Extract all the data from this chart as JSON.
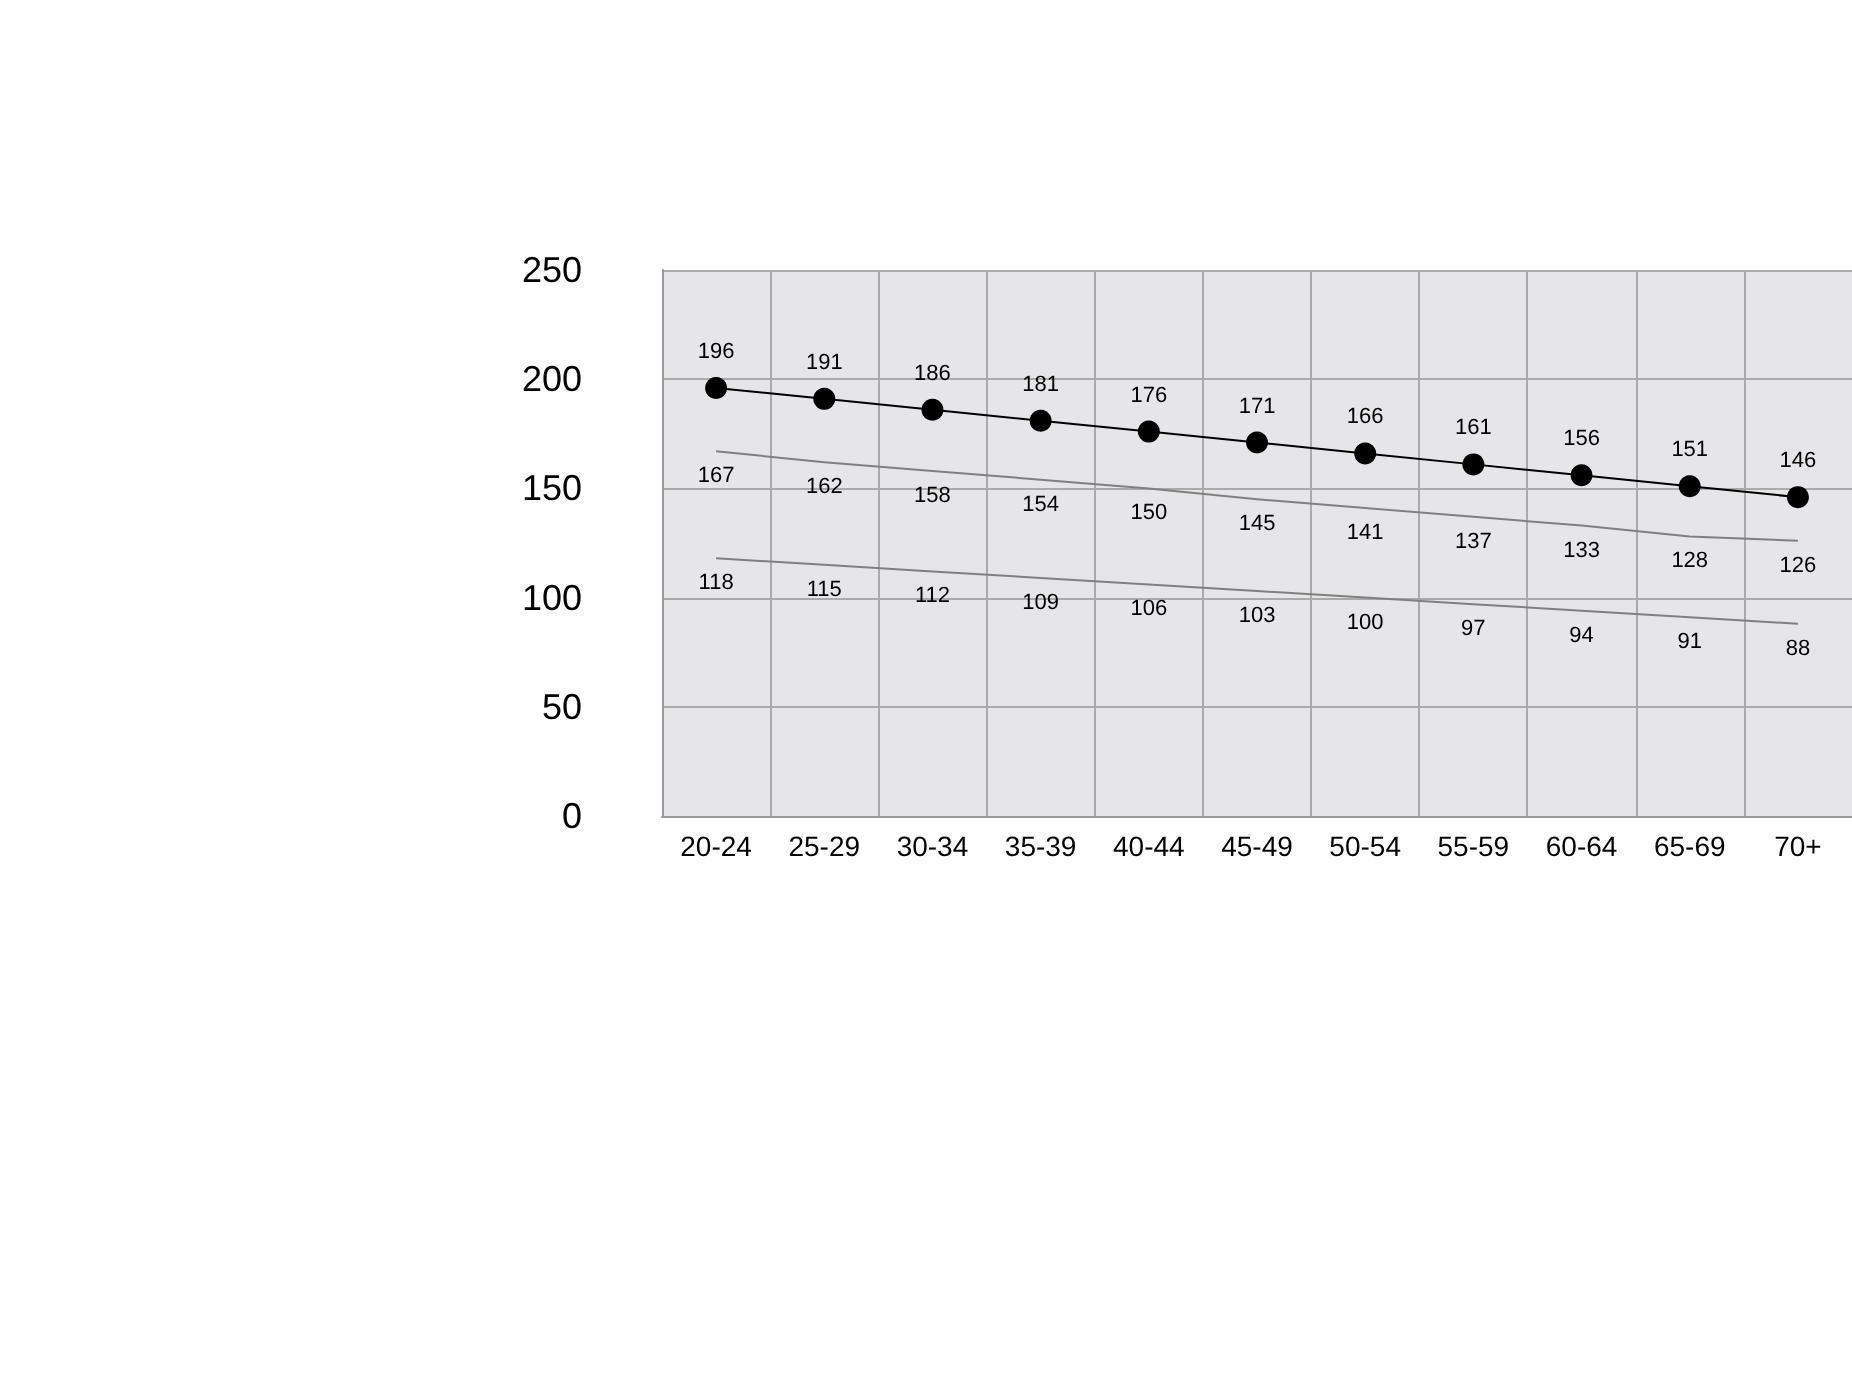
{
  "chart_data": {
    "type": "line",
    "categories": [
      "20-24",
      "25-29",
      "30-34",
      "35-39",
      "40-44",
      "45-49",
      "50-54",
      "55-59",
      "60-64",
      "65-69",
      "70+"
    ],
    "series": [
      {
        "color": "#000000",
        "marker": "circle",
        "values": [
          196,
          191,
          186,
          181,
          176,
          171,
          166,
          161,
          156,
          151,
          146
        ]
      },
      {
        "color": "#808080",
        "marker": "none",
        "values": [
          167,
          162,
          158,
          154,
          150,
          145,
          141,
          137,
          133,
          128,
          126
        ]
      },
      {
        "color": "#808080",
        "marker": "none",
        "values": [
          118,
          115,
          112,
          109,
          106,
          103,
          100,
          97,
          94,
          91,
          88
        ]
      }
    ],
    "ylim": [
      0,
      250
    ],
    "yticks": [
      0,
      50,
      100,
      150,
      200,
      250
    ],
    "grid": true,
    "data_labels": true,
    "line_style": "solid"
  }
}
